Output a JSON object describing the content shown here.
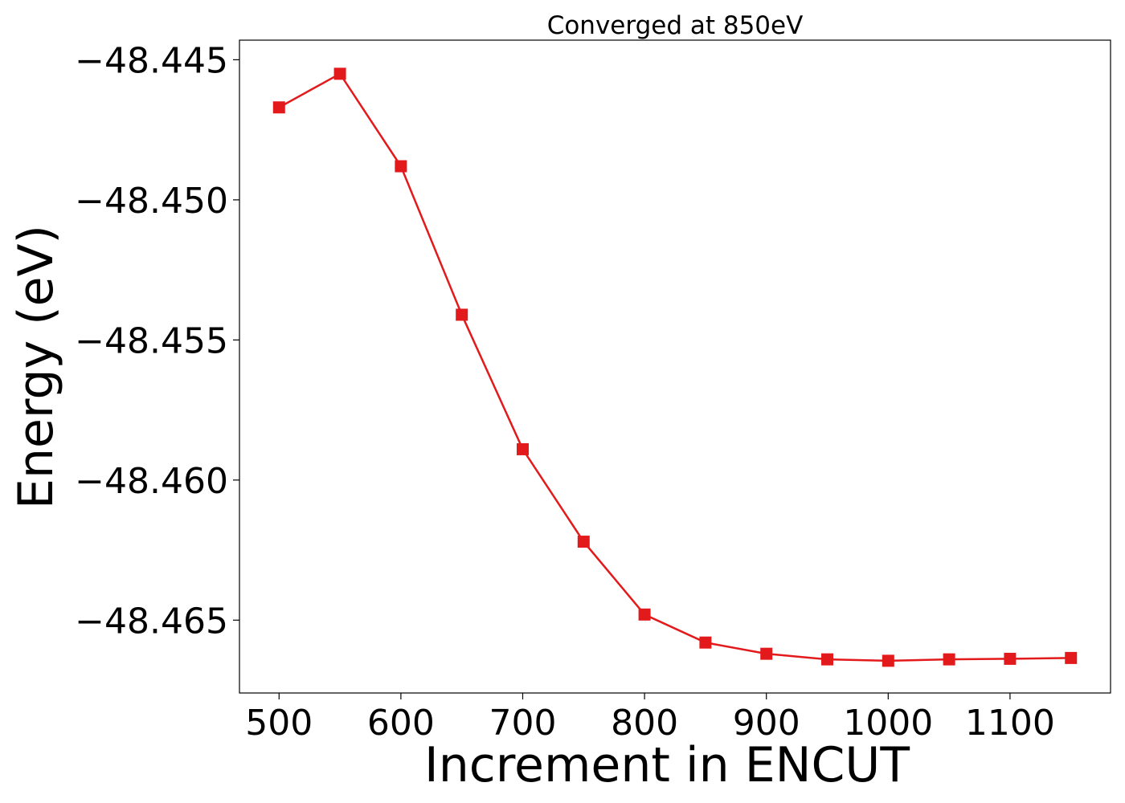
{
  "chart_data": {
    "type": "line",
    "title": "Converged at 850eV",
    "xlabel": "Increment in ENCUT",
    "ylabel": "Energy (eV)",
    "x": [
      500,
      550,
      600,
      650,
      700,
      750,
      800,
      850,
      900,
      950,
      1000,
      1050,
      1100,
      1150
    ],
    "series": [
      {
        "values": [
          -48.4467,
          -48.4455,
          -48.4488,
          -48.4541,
          -48.4589,
          -48.4622,
          -48.4648,
          -48.4658,
          -48.4662,
          -48.4664,
          -48.46645,
          -48.4664,
          -48.46638,
          -48.46635
        ],
        "color": "#e31a1c",
        "marker": "square"
      }
    ],
    "xticks": [
      500,
      600,
      700,
      800,
      900,
      1000,
      1100
    ],
    "xtick_labels": [
      "500",
      "600",
      "700",
      "800",
      "900",
      "1000",
      "1100"
    ],
    "yticks": [
      -48.445,
      -48.45,
      -48.455,
      -48.46,
      -48.465
    ],
    "ytick_labels": [
      "−48.445",
      "−48.450",
      "−48.455",
      "−48.460",
      "−48.465"
    ],
    "xlim": [
      467.5,
      1182.5
    ],
    "ylim": [
      -48.4676,
      -48.4443
    ],
    "grid": false,
    "legend": false
  }
}
